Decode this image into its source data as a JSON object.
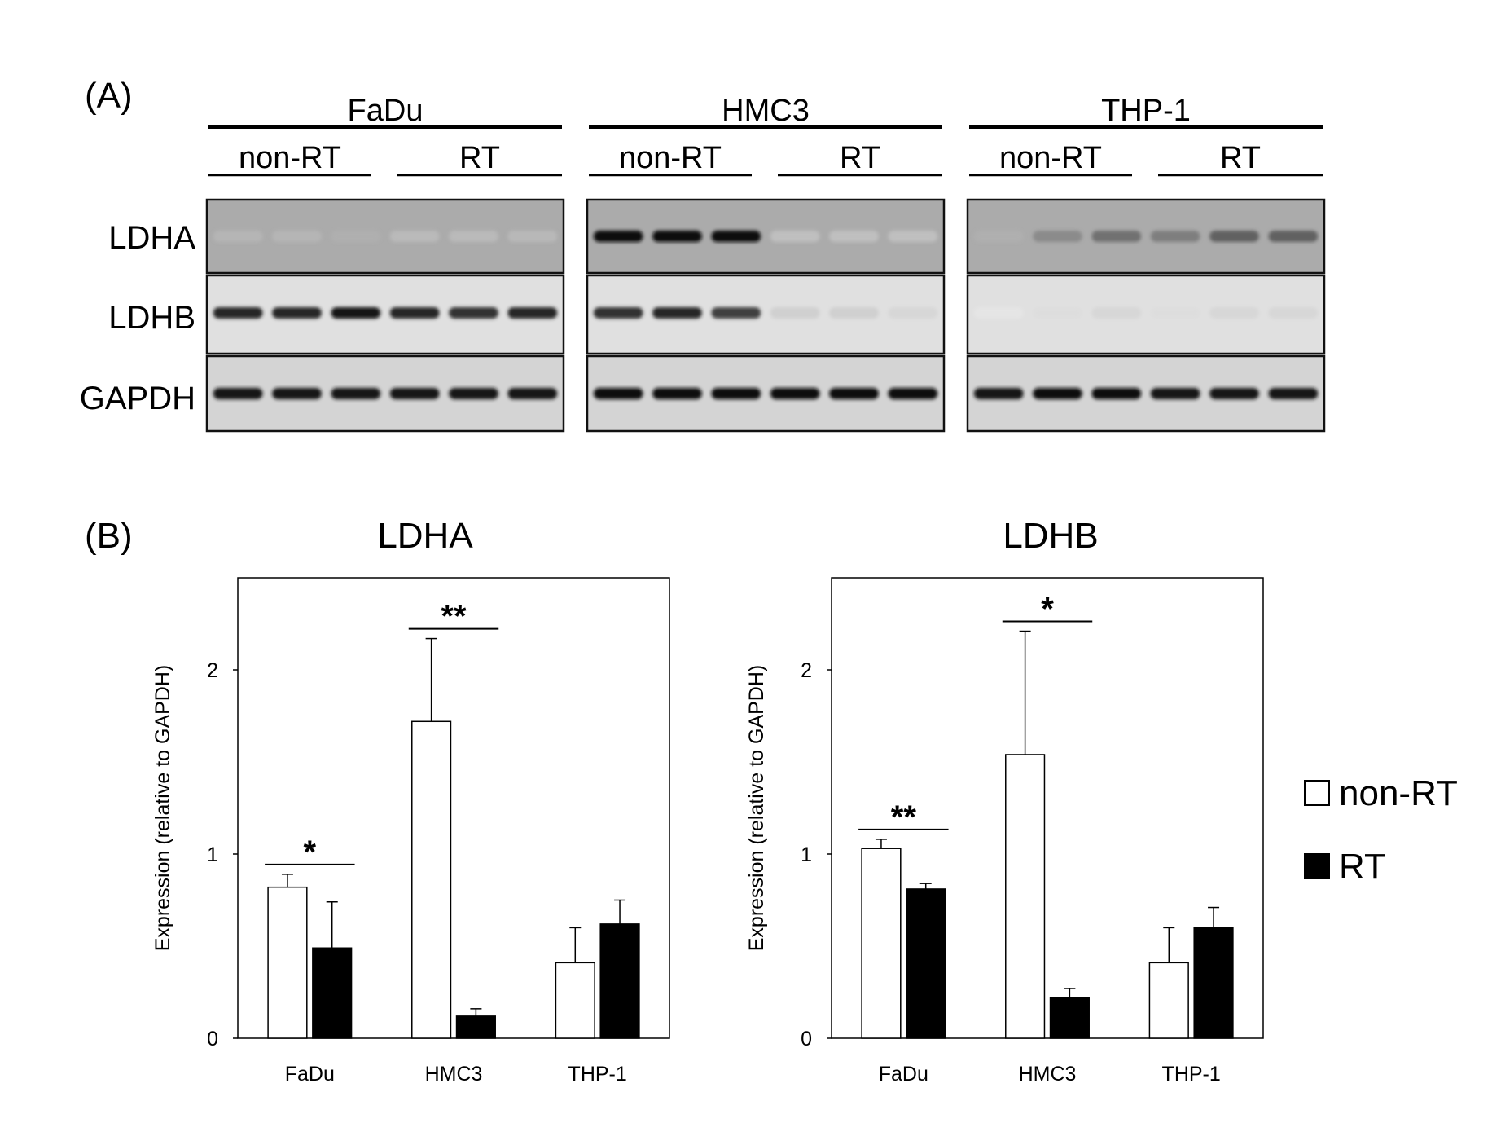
{
  "panel_a": {
    "letter": "(A)",
    "cell_lines": [
      "FaDu",
      "HMC3",
      "THP-1"
    ],
    "conditions": [
      "non-RT",
      "RT"
    ],
    "proteins": [
      "LDHA",
      "LDHB",
      "GAPDH"
    ],
    "band_intensity": [
      [
        [
          0.25,
          0.25,
          0.3,
          0.2,
          0.2,
          0.22
        ],
        [
          0.85,
          0.85,
          0.9,
          0.85,
          0.8,
          0.85
        ],
        [
          0.9,
          0.9,
          0.9,
          0.9,
          0.9,
          0.9
        ]
      ],
      [
        [
          0.95,
          0.95,
          0.95,
          0.1,
          0.1,
          0.1
        ],
        [
          0.8,
          0.85,
          0.75,
          0.25,
          0.25,
          0.2
        ],
        [
          0.95,
          0.95,
          0.95,
          0.95,
          0.95,
          0.95
        ]
      ],
      [
        [
          0.3,
          0.5,
          0.6,
          0.55,
          0.65,
          0.65
        ],
        [
          0.05,
          0.15,
          0.2,
          0.15,
          0.2,
          0.2
        ],
        [
          0.9,
          0.95,
          0.95,
          0.9,
          0.9,
          0.9
        ]
      ]
    ],
    "band_bg": [
      "#ababab",
      "#e0e0e0",
      "#d4d4d4"
    ]
  },
  "panel_b": {
    "letter": "(B)"
  },
  "legend": {
    "items": [
      {
        "label": "non-RT",
        "fill": "#ffffff"
      },
      {
        "label": "RT",
        "fill": "#000000"
      }
    ]
  },
  "chart_data": [
    {
      "type": "bar",
      "title": "LDHA",
      "ylabel": "Expression (relative to GAPDH)",
      "xlabel": "",
      "ylim": [
        0,
        2.5
      ],
      "yticks": [
        0,
        1,
        2
      ],
      "categories": [
        "FaDu",
        "HMC3",
        "THP-1"
      ],
      "series": [
        {
          "name": "non-RT",
          "color": "#ffffff",
          "values": [
            0.82,
            1.72,
            0.41
          ],
          "errors": [
            0.07,
            0.45,
            0.19
          ]
        },
        {
          "name": "RT",
          "color": "#000000",
          "values": [
            0.49,
            0.12,
            0.62
          ],
          "errors": [
            0.25,
            0.04,
            0.13
          ]
        }
      ],
      "annotations": [
        {
          "category": "FaDu",
          "text": "*"
        },
        {
          "category": "HMC3",
          "text": "**"
        }
      ]
    },
    {
      "type": "bar",
      "title": "LDHB",
      "ylabel": "Expression (relative to GAPDH)",
      "xlabel": "",
      "ylim": [
        0,
        2.5
      ],
      "yticks": [
        0,
        1,
        2
      ],
      "categories": [
        "FaDu",
        "HMC3",
        "THP-1"
      ],
      "series": [
        {
          "name": "non-RT",
          "color": "#ffffff",
          "values": [
            1.03,
            1.54,
            0.41
          ],
          "errors": [
            0.05,
            0.67,
            0.19
          ]
        },
        {
          "name": "RT",
          "color": "#000000",
          "values": [
            0.81,
            0.22,
            0.6
          ],
          "errors": [
            0.03,
            0.05,
            0.11
          ]
        }
      ],
      "annotations": [
        {
          "category": "FaDu",
          "text": "**"
        },
        {
          "category": "HMC3",
          "text": "*"
        }
      ]
    }
  ]
}
